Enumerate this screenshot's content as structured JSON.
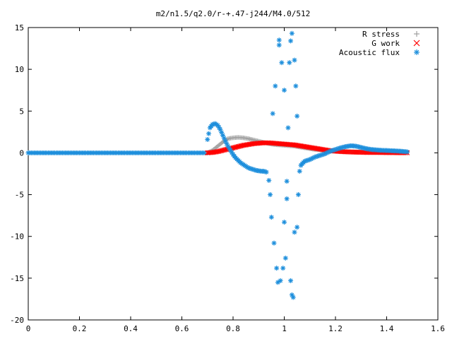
{
  "chart_data": {
    "type": "scatter",
    "title": "m2/n1.5/q2.0/r-+.47-j244/M4.0/512",
    "xlim": [
      0,
      1.6
    ],
    "ylim": [
      -20,
      15
    ],
    "x_ticks": [
      "0",
      "0.2",
      "0.4",
      "0.6",
      "0.8",
      "1",
      "1.2",
      "1.4",
      "1.6"
    ],
    "y_ticks": [
      "15",
      "10",
      "5",
      "0",
      "-5",
      "-10",
      "-15",
      "-20"
    ],
    "legend_position": "top-right",
    "series": [
      {
        "name": "R stress",
        "marker": "+",
        "color": "#a0a0a0",
        "points": [
          [
            0.7,
            0.0
          ],
          [
            0.72,
            0.3
          ],
          [
            0.74,
            0.8
          ],
          [
            0.76,
            1.3
          ],
          [
            0.78,
            1.7
          ],
          [
            0.8,
            1.8
          ],
          [
            0.82,
            1.85
          ],
          [
            0.84,
            1.8
          ],
          [
            0.86,
            1.7
          ],
          [
            0.88,
            1.55
          ],
          [
            0.9,
            1.4
          ],
          [
            0.92,
            1.25
          ],
          [
            0.94,
            1.1
          ],
          [
            0.96,
            1.0
          ],
          [
            0.98,
            0.95
          ],
          [
            1.0,
            0.9
          ],
          [
            1.02,
            0.85
          ],
          [
            1.04,
            0.8
          ],
          [
            1.06,
            0.7
          ],
          [
            1.08,
            0.6
          ],
          [
            1.1,
            0.5
          ],
          [
            1.12,
            0.4
          ],
          [
            1.14,
            0.35
          ],
          [
            1.16,
            0.3
          ],
          [
            1.18,
            0.25
          ],
          [
            1.2,
            0.2
          ],
          [
            1.24,
            0.15
          ],
          [
            1.28,
            0.12
          ],
          [
            1.32,
            0.1
          ],
          [
            1.36,
            0.1
          ],
          [
            1.4,
            0.08
          ],
          [
            1.44,
            0.05
          ],
          [
            1.48,
            0.03
          ]
        ]
      },
      {
        "name": "G work",
        "marker": "x",
        "color": "#ff0000",
        "points": [
          [
            0.7,
            0.0
          ],
          [
            0.72,
            0.05
          ],
          [
            0.74,
            0.15
          ],
          [
            0.76,
            0.3
          ],
          [
            0.78,
            0.45
          ],
          [
            0.8,
            0.6
          ],
          [
            0.82,
            0.75
          ],
          [
            0.84,
            0.9
          ],
          [
            0.86,
            1.0
          ],
          [
            0.88,
            1.1
          ],
          [
            0.9,
            1.15
          ],
          [
            0.92,
            1.2
          ],
          [
            0.94,
            1.2
          ],
          [
            0.96,
            1.15
          ],
          [
            0.98,
            1.1
          ],
          [
            1.0,
            1.05
          ],
          [
            1.02,
            1.0
          ],
          [
            1.04,
            0.95
          ],
          [
            1.06,
            0.85
          ],
          [
            1.08,
            0.75
          ],
          [
            1.1,
            0.65
          ],
          [
            1.12,
            0.55
          ],
          [
            1.14,
            0.45
          ],
          [
            1.16,
            0.35
          ],
          [
            1.18,
            0.25
          ],
          [
            1.2,
            0.2
          ],
          [
            1.24,
            0.12
          ],
          [
            1.28,
            0.08
          ],
          [
            1.32,
            0.05
          ],
          [
            1.36,
            0.05
          ],
          [
            1.4,
            0.03
          ],
          [
            1.44,
            0.02
          ],
          [
            1.48,
            0.01
          ]
        ]
      },
      {
        "name": "Acoustic flux",
        "marker": "*",
        "color": "#1e8fdc",
        "points": [
          [
            0.7,
            1.6
          ],
          [
            0.71,
            3.0
          ],
          [
            0.72,
            3.4
          ],
          [
            0.73,
            3.5
          ],
          [
            0.74,
            3.3
          ],
          [
            0.75,
            2.8
          ],
          [
            0.76,
            2.1
          ],
          [
            0.77,
            1.4
          ],
          [
            0.78,
            0.8
          ],
          [
            0.79,
            0.3
          ],
          [
            0.8,
            -0.2
          ],
          [
            0.81,
            -0.6
          ],
          [
            0.82,
            -0.9
          ],
          [
            0.83,
            -1.2
          ],
          [
            0.84,
            -1.4
          ],
          [
            0.85,
            -1.6
          ],
          [
            0.86,
            -1.8
          ],
          [
            0.87,
            -1.9
          ],
          [
            0.88,
            -2.0
          ],
          [
            0.89,
            -2.1
          ],
          [
            0.9,
            -2.15
          ],
          [
            0.91,
            -2.2
          ],
          [
            0.92,
            -2.2
          ],
          [
            0.93,
            -2.3
          ],
          [
            0.94,
            -3.3
          ],
          [
            0.945,
            -5.0
          ],
          [
            0.95,
            -7.7
          ],
          [
            0.955,
            4.7
          ],
          [
            0.96,
            -10.8
          ],
          [
            0.965,
            8.0
          ],
          [
            0.97,
            -13.8
          ],
          [
            0.975,
            -15.5
          ],
          [
            0.98,
            13.5
          ],
          [
            0.98,
            12.9
          ],
          [
            0.985,
            -15.3
          ],
          [
            0.99,
            10.8
          ],
          [
            0.995,
            -13.8
          ],
          [
            1.0,
            7.5
          ],
          [
            1.0,
            -8.3
          ],
          [
            1.005,
            -12.6
          ],
          [
            1.01,
            -5.5
          ],
          [
            1.01,
            -3.4
          ],
          [
            1.015,
            3.0
          ],
          [
            1.02,
            10.8
          ],
          [
            1.025,
            13.4
          ],
          [
            1.025,
            -15.3
          ],
          [
            1.03,
            14.3
          ],
          [
            1.03,
            -17.0
          ],
          [
            1.035,
            -17.3
          ],
          [
            1.04,
            11.1
          ],
          [
            1.04,
            -9.5
          ],
          [
            1.045,
            8.0
          ],
          [
            1.05,
            -8.9
          ],
          [
            1.05,
            4.4
          ],
          [
            1.055,
            -5.0
          ],
          [
            1.06,
            -2.2
          ],
          [
            1.065,
            -1.5
          ],
          [
            1.07,
            -1.3
          ],
          [
            1.08,
            -1.0
          ],
          [
            1.1,
            -0.8
          ],
          [
            1.12,
            -0.5
          ],
          [
            1.14,
            -0.3
          ],
          [
            1.16,
            -0.1
          ],
          [
            1.18,
            0.2
          ],
          [
            1.2,
            0.4
          ],
          [
            1.22,
            0.6
          ],
          [
            1.24,
            0.75
          ],
          [
            1.26,
            0.85
          ],
          [
            1.28,
            0.8
          ],
          [
            1.3,
            0.65
          ],
          [
            1.32,
            0.5
          ],
          [
            1.34,
            0.4
          ],
          [
            1.36,
            0.35
          ],
          [
            1.38,
            0.3
          ],
          [
            1.4,
            0.28
          ],
          [
            1.42,
            0.25
          ],
          [
            1.44,
            0.22
          ],
          [
            1.46,
            0.18
          ],
          [
            1.48,
            0.12
          ]
        ]
      }
    ],
    "baseline_series": {
      "series_index": 2,
      "x_from": 0.0,
      "x_to": 0.7,
      "y": 0.0
    }
  }
}
